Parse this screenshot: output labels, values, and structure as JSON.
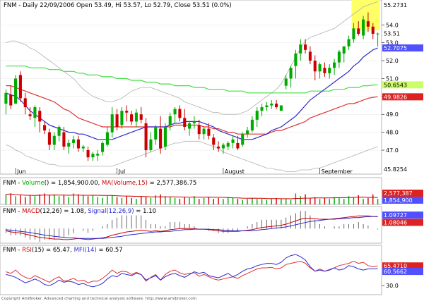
{
  "header": {
    "symbol": "FNM",
    "price_line": "Daily 22/09/2006 Open 53.49, Hi 53.57, Lo 52.79, Close 53.51 (0.0%)"
  },
  "panels": {
    "volume_label_parts": [
      "FNM - ",
      "Volume",
      "() = 1,854,900.00, ",
      "MA(Volume,15)",
      " = 2,577,386.75"
    ],
    "macd_label_parts": [
      "FNM - ",
      "MACD",
      "(12,26) = 1.08, ",
      "Signal(12,26,9)",
      " = 1.10"
    ],
    "rsi_label_parts": [
      "FNM - ",
      "RSI",
      "(15) = 65.47, ",
      "MFI(14)",
      " = 60.57"
    ]
  },
  "footer": "Copyright AmiBroker. Advanced charting and technical analysis software. http://www.amibroker.com",
  "colors": {
    "bull": "#00aa00",
    "bear": "#cc0000",
    "ma_short": "#2a2ad0",
    "ma_mid": "#e03030",
    "ma_long": "#44dd44",
    "bollinger": "#b0b0b0",
    "highlight": "#ffff66",
    "tag_price": "#ffffff",
    "tag_ma_short": "#5050ff",
    "tag_ma_mid": "#dd2222",
    "tag_ma_long": "#ccff66"
  },
  "chart_data": {
    "type": "candlestick",
    "x_labels": [
      "Jun",
      "Jul",
      "August",
      "September"
    ],
    "x_label_index": [
      2,
      23,
      45,
      65
    ],
    "price_axis": {
      "ticks": [
        47.0,
        48.0,
        49.0,
        50.0,
        51.0,
        52.0,
        53.0,
        54.0
      ],
      "ylim": [
        45.82,
        55.27
      ],
      "tags": [
        {
          "label": "55.2731",
          "value": 55.27,
          "role": "top"
        },
        {
          "label": "53.51",
          "value": 53.51,
          "role": "price"
        },
        {
          "label": "52.7075",
          "value": 52.71,
          "role": "ma_short"
        },
        {
          "label": "50.6543",
          "value": 50.65,
          "role": "ma_long"
        },
        {
          "label": "49.9826",
          "value": 49.98,
          "role": "ma_mid"
        },
        {
          "label": "45.8254",
          "value": 45.83,
          "role": "bottom"
        }
      ]
    },
    "ohlc": [
      [
        49.6,
        50.4,
        49.0,
        50.2
      ],
      [
        50.1,
        50.6,
        49.3,
        49.5
      ],
      [
        49.6,
        51.2,
        49.6,
        51.0
      ],
      [
        51.2,
        51.4,
        49.7,
        49.9
      ],
      [
        49.9,
        50.2,
        49.0,
        49.4
      ],
      [
        49.0,
        49.4,
        48.7,
        48.9
      ],
      [
        48.8,
        49.5,
        48.3,
        49.4
      ],
      [
        49.2,
        49.4,
        48.0,
        48.6
      ],
      [
        48.4,
        48.6,
        47.9,
        48.1
      ],
      [
        48.0,
        48.2,
        47.0,
        47.3
      ],
      [
        47.3,
        48.0,
        47.0,
        47.8
      ],
      [
        47.8,
        48.4,
        47.5,
        48.3
      ],
      [
        48.0,
        48.3,
        47.0,
        47.2
      ],
      [
        47.2,
        47.6,
        46.8,
        47.4
      ],
      [
        47.4,
        47.8,
        47.1,
        47.6
      ],
      [
        47.6,
        47.8,
        46.9,
        47.1
      ],
      [
        47.1,
        47.3,
        46.9,
        47.2
      ],
      [
        47.0,
        47.2,
        46.4,
        46.6
      ],
      [
        46.6,
        46.9,
        46.4,
        46.8
      ],
      [
        46.7,
        47.0,
        46.4,
        46.8
      ],
      [
        46.9,
        47.5,
        46.7,
        47.4
      ],
      [
        47.3,
        48.3,
        47.2,
        48.0
      ],
      [
        48.0,
        49.4,
        47.7,
        49.0
      ],
      [
        49.0,
        49.3,
        48.1,
        48.3
      ],
      [
        48.4,
        49.4,
        48.2,
        49.2
      ],
      [
        49.2,
        49.5,
        48.6,
        49.1
      ],
      [
        49.0,
        49.2,
        48.4,
        48.6
      ],
      [
        48.6,
        49.3,
        48.3,
        49.1
      ],
      [
        49.0,
        49.4,
        48.5,
        48.7
      ],
      [
        48.5,
        48.8,
        46.6,
        47.0
      ],
      [
        47.0,
        48.0,
        46.9,
        47.6
      ],
      [
        47.6,
        48.4,
        47.3,
        48.3
      ],
      [
        48.2,
        48.9,
        46.8,
        47.1
      ],
      [
        47.2,
        48.5,
        47.0,
        48.3
      ],
      [
        48.4,
        49.1,
        48.1,
        48.9
      ],
      [
        49.0,
        49.4,
        48.5,
        49.3
      ],
      [
        49.3,
        49.5,
        48.6,
        48.8
      ],
      [
        48.8,
        49.3,
        48.1,
        48.3
      ],
      [
        48.2,
        48.6,
        47.8,
        48.5
      ],
      [
        48.5,
        48.9,
        48.2,
        48.6
      ],
      [
        48.4,
        48.7,
        47.6,
        47.9
      ],
      [
        47.9,
        48.3,
        47.6,
        48.2
      ],
      [
        48.2,
        48.5,
        47.6,
        47.8
      ],
      [
        47.7,
        47.9,
        47.0,
        47.3
      ],
      [
        47.2,
        47.5,
        46.9,
        47.1
      ],
      [
        47.1,
        47.4,
        46.8,
        47.3
      ],
      [
        47.2,
        47.5,
        47.0,
        47.4
      ],
      [
        47.4,
        47.8,
        47.1,
        47.6
      ],
      [
        47.4,
        47.8,
        47.0,
        47.1
      ],
      [
        47.3,
        48.0,
        47.2,
        47.9
      ],
      [
        47.9,
        48.3,
        47.7,
        48.1
      ],
      [
        48.1,
        48.9,
        48.0,
        48.7
      ],
      [
        48.7,
        49.4,
        48.3,
        49.2
      ],
      [
        49.2,
        49.6,
        48.9,
        49.4
      ],
      [
        49.4,
        49.7,
        49.2,
        49.5
      ],
      [
        49.5,
        49.8,
        49.3,
        49.6
      ],
      [
        49.6,
        49.8,
        49.3,
        49.4
      ],
      [
        49.2,
        49.5,
        49.2,
        49.5
      ],
      [
        50.6,
        51.2,
        50.4,
        51.0
      ],
      [
        51.0,
        51.7,
        50.5,
        51.6
      ],
      [
        51.7,
        52.6,
        51.0,
        52.4
      ],
      [
        52.4,
        53.2,
        52.0,
        52.9
      ],
      [
        52.9,
        53.2,
        52.4,
        52.6
      ],
      [
        52.5,
        52.8,
        51.8,
        52.0
      ],
      [
        52.0,
        52.3,
        50.9,
        51.4
      ],
      [
        51.4,
        51.9,
        51.0,
        51.8
      ],
      [
        51.6,
        51.9,
        51.1,
        51.3
      ],
      [
        51.3,
        51.8,
        51.0,
        51.6
      ],
      [
        51.6,
        52.1,
        51.2,
        51.9
      ],
      [
        51.9,
        52.6,
        51.6,
        52.5
      ],
      [
        52.4,
        52.8,
        51.9,
        52.8
      ],
      [
        52.8,
        53.4,
        52.6,
        53.2
      ],
      [
        53.2,
        54.1,
        53.0,
        53.8
      ],
      [
        53.8,
        54.2,
        53.4,
        53.5
      ],
      [
        53.4,
        54.5,
        53.2,
        54.3
      ],
      [
        54.2,
        54.7,
        53.6,
        53.9
      ],
      [
        53.9,
        54.1,
        53.2,
        53.5
      ],
      [
        53.49,
        53.57,
        52.79,
        53.51
      ]
    ],
    "ma_short": [
      50.2,
      50.1,
      50.0,
      49.8,
      49.5,
      49.2,
      49.0,
      48.8,
      48.6,
      48.4,
      48.3,
      48.2,
      48.1,
      48.0,
      48.0,
      47.9,
      47.9,
      47.8,
      47.7,
      47.6,
      47.6,
      47.6,
      47.6,
      47.7,
      47.8,
      47.9,
      48.0,
      48.1,
      48.2,
      48.3,
      48.3,
      48.3,
      48.3,
      48.3,
      48.4,
      48.5,
      48.5,
      48.6,
      48.6,
      48.6,
      48.6,
      48.5,
      48.4,
      48.3,
      48.1,
      48.0,
      47.9,
      47.8,
      47.7,
      47.6,
      47.6,
      47.6,
      47.7,
      47.8,
      47.9,
      48.1,
      48.2,
      48.3,
      48.5,
      48.7,
      48.9,
      49.2,
      49.5,
      49.8,
      50.0,
      50.2,
      50.4,
      50.6,
      50.8,
      51.0,
      51.2,
      51.4,
      51.7,
      51.9,
      52.2,
      52.4,
      52.6,
      52.71
    ],
    "ma_mid": [
      50.6,
      50.6,
      50.5,
      50.4,
      50.3,
      50.2,
      50.1,
      50.0,
      49.9,
      49.8,
      49.7,
      49.5,
      49.3,
      49.2,
      49.0,
      48.8,
      48.7,
      48.6,
      48.5,
      48.4,
      48.3,
      48.3,
      48.3,
      48.3,
      48.3,
      48.3,
      48.3,
      48.3,
      48.3,
      48.3,
      48.3,
      48.3,
      48.3,
      48.3,
      48.3,
      48.4,
      48.4,
      48.4,
      48.4,
      48.4,
      48.4,
      48.3,
      48.3,
      48.2,
      48.2,
      48.1,
      48.0,
      48.0,
      47.9,
      47.9,
      47.9,
      47.9,
      47.9,
      47.9,
      47.9,
      48.0,
      48.1,
      48.1,
      48.2,
      48.3,
      48.4,
      48.5,
      48.6,
      48.8,
      48.9,
      49.0,
      49.1,
      49.2,
      49.3,
      49.4,
      49.5,
      49.6,
      49.6,
      49.7,
      49.8,
      49.9,
      49.95,
      49.98
    ],
    "ma_long": [
      51.7,
      51.7,
      51.7,
      51.7,
      51.7,
      51.6,
      51.6,
      51.6,
      51.6,
      51.5,
      51.5,
      51.5,
      51.4,
      51.4,
      51.4,
      51.3,
      51.3,
      51.2,
      51.2,
      51.2,
      51.1,
      51.1,
      51.1,
      51.0,
      51.0,
      51.0,
      50.9,
      50.9,
      50.9,
      50.8,
      50.8,
      50.8,
      50.7,
      50.7,
      50.7,
      50.6,
      50.6,
      50.6,
      50.6,
      50.5,
      50.5,
      50.5,
      50.4,
      50.4,
      50.4,
      50.4,
      50.3,
      50.3,
      50.3,
      50.3,
      50.2,
      50.2,
      50.2,
      50.2,
      50.2,
      50.2,
      50.2,
      50.2,
      50.2,
      50.2,
      50.2,
      50.2,
      50.2,
      50.3,
      50.3,
      50.3,
      50.3,
      50.3,
      50.4,
      50.4,
      50.4,
      50.5,
      50.5,
      50.5,
      50.6,
      50.6,
      50.64,
      50.65
    ],
    "bollinger_upper": [
      53.0,
      53.1,
      53.1,
      53.0,
      52.9,
      52.7,
      52.6,
      52.4,
      52.2,
      52.0,
      51.8,
      51.6,
      51.4,
      51.2,
      51.0,
      50.7,
      50.4,
      50.2,
      50.0,
      49.9,
      49.8,
      49.7,
      49.7,
      49.8,
      49.9,
      50.1,
      50.3,
      50.4,
      50.5,
      50.5,
      50.5,
      50.4,
      50.3,
      50.2,
      50.1,
      50.0,
      49.9,
      49.7,
      49.6,
      49.5,
      49.4,
      49.3,
      49.2,
      49.1,
      49.1,
      49.0,
      49.0,
      49.0,
      49.0,
      49.1,
      49.2,
      49.4,
      49.6,
      49.8,
      50.0,
      50.2,
      50.4,
      50.7,
      51.2,
      51.7,
      52.2,
      52.7,
      53.1,
      53.3,
      53.4,
      53.5,
      53.6,
      53.7,
      53.8,
      54.0,
      54.2,
      54.4,
      54.6,
      54.8,
      55.0,
      55.1,
      55.2,
      55.3
    ],
    "bollinger_lower": [
      47.3,
      47.2,
      47.0,
      46.9,
      46.7,
      46.6,
      46.5,
      46.4,
      46.3,
      46.2,
      46.2,
      46.1,
      46.1,
      46.1,
      46.1,
      46.1,
      46.1,
      46.1,
      46.1,
      46.1,
      46.1,
      46.1,
      46.1,
      46.2,
      46.3,
      46.4,
      46.5,
      46.6,
      46.7,
      46.8,
      46.9,
      47.0,
      47.1,
      47.2,
      47.3,
      47.4,
      47.4,
      47.5,
      47.5,
      47.5,
      47.5,
      47.4,
      47.3,
      47.2,
      47.1,
      46.9,
      46.8,
      46.7,
      46.6,
      46.5,
      46.4,
      46.3,
      46.2,
      46.1,
      46.0,
      46.0,
      45.9,
      45.9,
      45.8,
      45.8,
      45.8,
      45.9,
      45.9,
      45.9,
      46.0,
      46.0,
      46.1,
      46.2,
      46.3,
      46.4,
      46.5,
      46.6,
      46.7,
      46.8,
      46.9,
      47.0,
      47.1,
      47.2
    ],
    "highlight_box": {
      "start_index": 72,
      "end_index": 77,
      "y_top": 55.4,
      "y_bottom": 53.7
    },
    "volume": [
      0.55,
      0.6,
      0.45,
      0.5,
      0.4,
      0.5,
      0.45,
      0.55,
      0.6,
      0.5,
      0.55,
      0.45,
      0.5,
      0.4,
      0.6,
      0.55,
      0.5,
      0.45,
      0.5,
      0.4,
      0.35,
      0.45,
      0.5,
      0.4,
      0.35,
      0.45,
      0.35,
      0.3,
      0.45,
      0.4,
      0.35,
      0.5,
      0.55,
      0.45,
      0.4,
      0.35,
      0.3,
      0.4,
      0.35,
      0.45,
      0.3,
      0.35,
      0.4,
      0.3,
      0.35,
      0.3,
      0.4,
      0.35,
      0.3,
      0.25,
      0.3,
      0.35,
      0.3,
      0.3,
      0.25,
      0.3,
      0.35,
      0.3,
      0.3,
      0.25,
      0.6,
      0.45,
      0.55,
      0.35,
      0.4,
      0.3,
      0.35,
      0.3,
      0.4,
      0.35,
      0.3,
      0.45,
      0.4,
      0.5,
      0.3,
      0.35,
      0.55,
      0.3
    ],
    "volume_tags": [
      {
        "label": "2,577,387",
        "role": "ma"
      },
      {
        "label": "1,854,900",
        "role": "vol"
      }
    ],
    "macd": [
      -0.2,
      -0.3,
      -0.35,
      -0.4,
      -0.5,
      -0.6,
      -0.7,
      -0.8,
      -0.85,
      -0.9,
      -0.95,
      -0.95,
      -1.0,
      -1.0,
      -0.95,
      -0.9,
      -0.95,
      -1.0,
      -0.95,
      -0.9,
      -0.85,
      -0.75,
      -0.6,
      -0.5,
      -0.4,
      -0.3,
      -0.25,
      -0.2,
      -0.15,
      -0.2,
      -0.25,
      -0.2,
      -0.25,
      -0.2,
      -0.1,
      -0.05,
      0.0,
      0.0,
      0.0,
      0.0,
      -0.05,
      -0.05,
      -0.1,
      -0.15,
      -0.2,
      -0.25,
      -0.25,
      -0.25,
      -0.25,
      -0.2,
      -0.15,
      -0.1,
      0.0,
      0.1,
      0.15,
      0.2,
      0.25,
      0.3,
      0.4,
      0.55,
      0.7,
      0.85,
      0.95,
      0.95,
      0.9,
      0.85,
      0.85,
      0.85,
      0.9,
      0.95,
      1.0,
      1.05,
      1.1,
      1.15,
      1.15,
      1.15,
      1.1,
      1.08
    ],
    "macd_signal": [
      -0.1,
      -0.15,
      -0.2,
      -0.25,
      -0.3,
      -0.35,
      -0.45,
      -0.5,
      -0.6,
      -0.65,
      -0.7,
      -0.75,
      -0.8,
      -0.85,
      -0.85,
      -0.9,
      -0.9,
      -0.9,
      -0.9,
      -0.9,
      -0.9,
      -0.85,
      -0.8,
      -0.75,
      -0.7,
      -0.6,
      -0.55,
      -0.5,
      -0.45,
      -0.4,
      -0.35,
      -0.3,
      -0.3,
      -0.25,
      -0.25,
      -0.2,
      -0.15,
      -0.1,
      -0.1,
      -0.05,
      -0.05,
      -0.05,
      -0.05,
      -0.1,
      -0.1,
      -0.15,
      -0.15,
      -0.2,
      -0.2,
      -0.2,
      -0.2,
      -0.2,
      -0.15,
      -0.1,
      -0.05,
      0.0,
      0.05,
      0.1,
      0.15,
      0.25,
      0.35,
      0.45,
      0.55,
      0.65,
      0.7,
      0.75,
      0.8,
      0.85,
      0.85,
      0.9,
      0.9,
      0.95,
      1.0,
      1.0,
      1.05,
      1.08,
      1.1,
      1.1
    ],
    "macd_tags": [
      {
        "label": "1.09727",
        "role": "signal"
      },
      {
        "label": "1.08046",
        "role": "macd"
      }
    ],
    "macd_ylim": [
      -1.2,
      1.3
    ],
    "rsi": [
      55,
      52,
      58,
      50,
      45,
      42,
      48,
      44,
      40,
      36,
      42,
      46,
      38,
      40,
      43,
      38,
      40,
      35,
      38,
      38,
      43,
      50,
      58,
      52,
      56,
      55,
      50,
      54,
      50,
      38,
      45,
      50,
      40,
      50,
      56,
      58,
      53,
      50,
      52,
      53,
      47,
      50,
      46,
      42,
      40,
      42,
      44,
      46,
      43,
      48,
      52,
      56,
      60,
      62,
      62,
      63,
      60,
      62,
      68,
      70,
      72,
      74,
      70,
      62,
      56,
      60,
      56,
      59,
      62,
      66,
      68,
      70,
      74,
      70,
      72,
      66,
      64,
      65.47
    ],
    "mfi": [
      50,
      48,
      45,
      40,
      35,
      38,
      42,
      38,
      32,
      30,
      34,
      40,
      36,
      38,
      36,
      32,
      34,
      30,
      28,
      30,
      34,
      42,
      48,
      46,
      52,
      50,
      48,
      52,
      50,
      40,
      44,
      48,
      40,
      46,
      50,
      52,
      48,
      45,
      50,
      55,
      52,
      54,
      48,
      46,
      44,
      48,
      52,
      46,
      50,
      56,
      60,
      62,
      66,
      68,
      70,
      70,
      68,
      72,
      80,
      84,
      86,
      82,
      76,
      64,
      56,
      58,
      56,
      58,
      62,
      58,
      60,
      66,
      64,
      60,
      58,
      60,
      60,
      60.57
    ],
    "rsi_tags": [
      {
        "label": "65.4710",
        "role": "rsi"
      },
      {
        "label": "60.5662",
        "role": "mfi"
      }
    ],
    "rsi_ticks": [
      30.0
    ],
    "rsi_ylim": [
      15,
      100
    ]
  }
}
